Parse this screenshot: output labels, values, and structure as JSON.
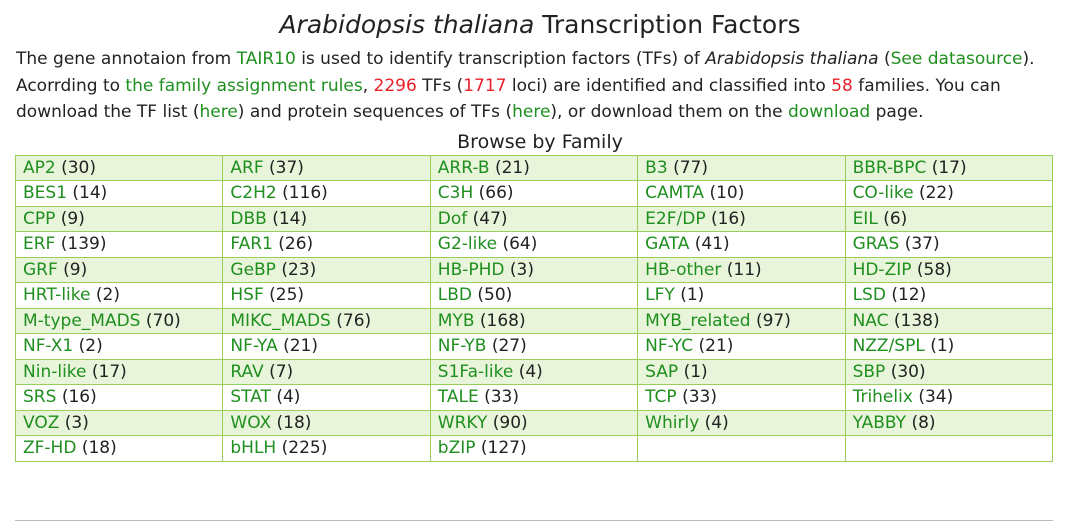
{
  "header": {
    "title_italic": "Arabidopsis thaliana",
    "title_rest": " Transcription Factors"
  },
  "intro": {
    "t1": "The gene annotaion from ",
    "link_tair": "TAIR10",
    "t2": " is used to identify transcription factors (TFs) of ",
    "species": "Arabidopsis thaliana",
    "t3": " (",
    "link_see": "See datasource",
    "t4": "). Acorrding to ",
    "link_rules": "the family assignment rules",
    "t5": ", ",
    "tf_count": "2296",
    "t6": " TFs (",
    "loci_count": "1717",
    "t7": " loci) are identified and classified into ",
    "family_count": "58",
    "t8": " families. You can download the TF list (",
    "link_here1": "here",
    "t9": ") and protein sequences of TFs (",
    "link_here2": "here",
    "t10": "), or download them on the ",
    "link_download": "download",
    "t11": " page."
  },
  "browse": {
    "title": "Browse by Family",
    "rows": [
      [
        {
          "name": "AP2",
          "count": "(30)"
        },
        {
          "name": "ARF",
          "count": "(37)"
        },
        {
          "name": "ARR-B",
          "count": "(21)"
        },
        {
          "name": "B3",
          "count": "(77)"
        },
        {
          "name": "BBR-BPC",
          "count": "(17)"
        }
      ],
      [
        {
          "name": "BES1",
          "count": "(14)"
        },
        {
          "name": "C2H2",
          "count": "(116)"
        },
        {
          "name": "C3H",
          "count": "(66)"
        },
        {
          "name": "CAMTA",
          "count": "(10)"
        },
        {
          "name": "CO-like",
          "count": "(22)"
        }
      ],
      [
        {
          "name": "CPP",
          "count": "(9)"
        },
        {
          "name": "DBB",
          "count": "(14)"
        },
        {
          "name": "Dof",
          "count": "(47)"
        },
        {
          "name": "E2F/DP",
          "count": "(16)"
        },
        {
          "name": "EIL",
          "count": "(6)"
        }
      ],
      [
        {
          "name": "ERF",
          "count": "(139)"
        },
        {
          "name": "FAR1",
          "count": "(26)"
        },
        {
          "name": "G2-like",
          "count": "(64)"
        },
        {
          "name": "GATA",
          "count": "(41)"
        },
        {
          "name": "GRAS",
          "count": "(37)"
        }
      ],
      [
        {
          "name": "GRF",
          "count": "(9)"
        },
        {
          "name": "GeBP",
          "count": "(23)"
        },
        {
          "name": "HB-PHD",
          "count": "(3)"
        },
        {
          "name": "HB-other",
          "count": "(11)"
        },
        {
          "name": "HD-ZIP",
          "count": "(58)"
        }
      ],
      [
        {
          "name": "HRT-like",
          "count": "(2)"
        },
        {
          "name": "HSF",
          "count": "(25)"
        },
        {
          "name": "LBD",
          "count": "(50)"
        },
        {
          "name": "LFY",
          "count": "(1)"
        },
        {
          "name": "LSD",
          "count": "(12)"
        }
      ],
      [
        {
          "name": "M-type_MADS",
          "count": "(70)"
        },
        {
          "name": "MIKC_MADS",
          "count": "(76)"
        },
        {
          "name": "MYB",
          "count": "(168)"
        },
        {
          "name": "MYB_related",
          "count": "(97)"
        },
        {
          "name": "NAC",
          "count": "(138)"
        }
      ],
      [
        {
          "name": "NF-X1",
          "count": "(2)"
        },
        {
          "name": "NF-YA",
          "count": "(21)"
        },
        {
          "name": "NF-YB",
          "count": "(27)"
        },
        {
          "name": "NF-YC",
          "count": "(21)"
        },
        {
          "name": "NZZ/SPL",
          "count": "(1)"
        }
      ],
      [
        {
          "name": "Nin-like",
          "count": "(17)"
        },
        {
          "name": "RAV",
          "count": "(7)"
        },
        {
          "name": "S1Fa-like",
          "count": "(4)"
        },
        {
          "name": "SAP",
          "count": "(1)"
        },
        {
          "name": "SBP",
          "count": "(30)"
        }
      ],
      [
        {
          "name": "SRS",
          "count": "(16)"
        },
        {
          "name": "STAT",
          "count": "(4)"
        },
        {
          "name": "TALE",
          "count": "(33)"
        },
        {
          "name": "TCP",
          "count": "(33)"
        },
        {
          "name": "Trihelix",
          "count": "(34)"
        }
      ],
      [
        {
          "name": "VOZ",
          "count": "(3)"
        },
        {
          "name": "WOX",
          "count": "(18)"
        },
        {
          "name": "WRKY",
          "count": "(90)"
        },
        {
          "name": "Whirly",
          "count": "(4)"
        },
        {
          "name": "YABBY",
          "count": "(8)"
        }
      ],
      [
        {
          "name": "ZF-HD",
          "count": "(18)"
        },
        {
          "name": "bHLH",
          "count": "(225)"
        },
        {
          "name": "bZIP",
          "count": "(127)"
        },
        null,
        null
      ]
    ]
  },
  "colors": {
    "link": "#1f8f1f",
    "highlight": "#e8202a",
    "row_alt": "#e9f5da",
    "border": "#9ccc5a"
  }
}
